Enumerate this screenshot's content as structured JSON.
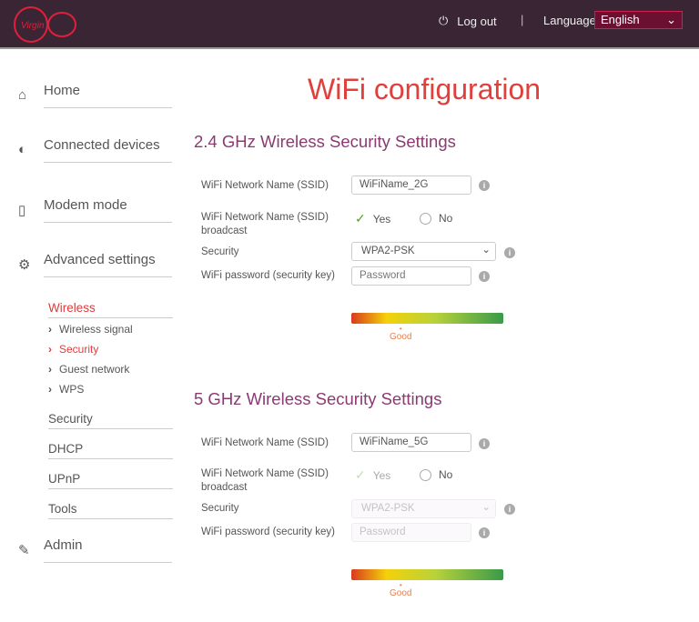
{
  "header": {
    "logout": "Log out",
    "separator": "|",
    "language_label": "Language",
    "language_value": "English"
  },
  "nav": {
    "home": "Home",
    "connected": "Connected devices",
    "modem": "Modem mode",
    "advanced": "Advanced settings",
    "wireless": "Wireless",
    "wireless_signal": "Wireless signal",
    "security_sub": "Security",
    "guest": "Guest network",
    "wps": "WPS",
    "security": "Security",
    "dhcp": "DHCP",
    "upnp": "UPnP",
    "tools": "Tools",
    "admin": "Admin"
  },
  "page_title": "WiFi configuration",
  "band24": {
    "title": "2.4 GHz Wireless Security Settings",
    "ssid_label": "WiFi Network Name (SSID)",
    "ssid_value": "WiFiName_2G",
    "broadcast_label": "WiFi Network Name (SSID) broadcast",
    "yes": "Yes",
    "no": "No",
    "broadcast": "Yes",
    "security_label": "Security",
    "security_value": "WPA2-PSK",
    "password_label": "WiFi password (security key)",
    "password_placeholder": "Password",
    "strength": "Good"
  },
  "band5": {
    "title": "5 GHz Wireless Security Settings",
    "ssid_label": "WiFi Network Name (SSID)",
    "ssid_value": "WiFiName_5G",
    "broadcast_label": "WiFi Network Name (SSID) broadcast",
    "yes": "Yes",
    "no": "No",
    "broadcast": "Yes",
    "security_label": "Security",
    "security_value": "WPA2-PSK",
    "password_label": "WiFi password (security key)",
    "password_placeholder": "Password",
    "strength": "Good",
    "disabled": true
  },
  "logo_text": "Virgin media",
  "colors": {
    "header": "#3a2535",
    "accent": "#e0403c",
    "heading": "#8b3a72"
  }
}
